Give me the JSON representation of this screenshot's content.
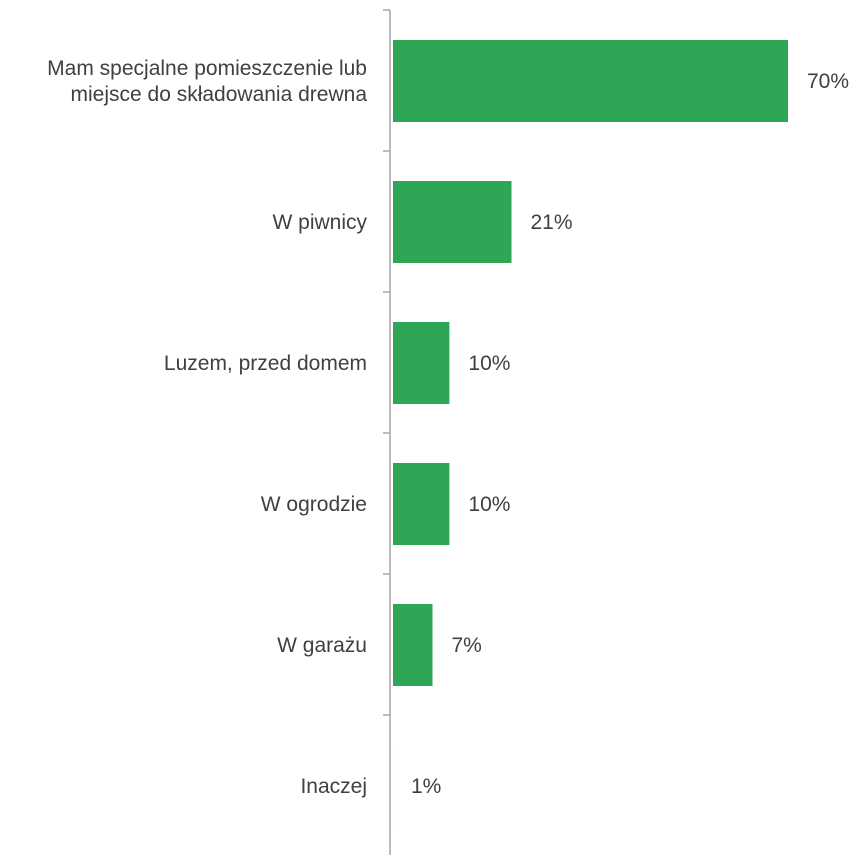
{
  "chart_data": {
    "type": "bar",
    "orientation": "horizontal",
    "categories": [
      [
        "Mam specjalne pomieszczenie lub",
        "miejsce do składowania drewna"
      ],
      [
        "W piwnicy"
      ],
      [
        "Luzem, przed domem"
      ],
      [
        "W ogrodzie"
      ],
      [
        "W garażu"
      ],
      [
        "Inaczej"
      ]
    ],
    "values": [
      70,
      21,
      10,
      10,
      7,
      1
    ],
    "value_labels": [
      "70%",
      "21%",
      "10%",
      "10%",
      "7%",
      "1%"
    ],
    "unit": "%",
    "xlim": [
      0,
      75
    ],
    "grid": false,
    "legend": "none",
    "colors": {
      "bar": "#2ea655",
      "axis": "#a6a6a6",
      "text": "#404040"
    }
  }
}
